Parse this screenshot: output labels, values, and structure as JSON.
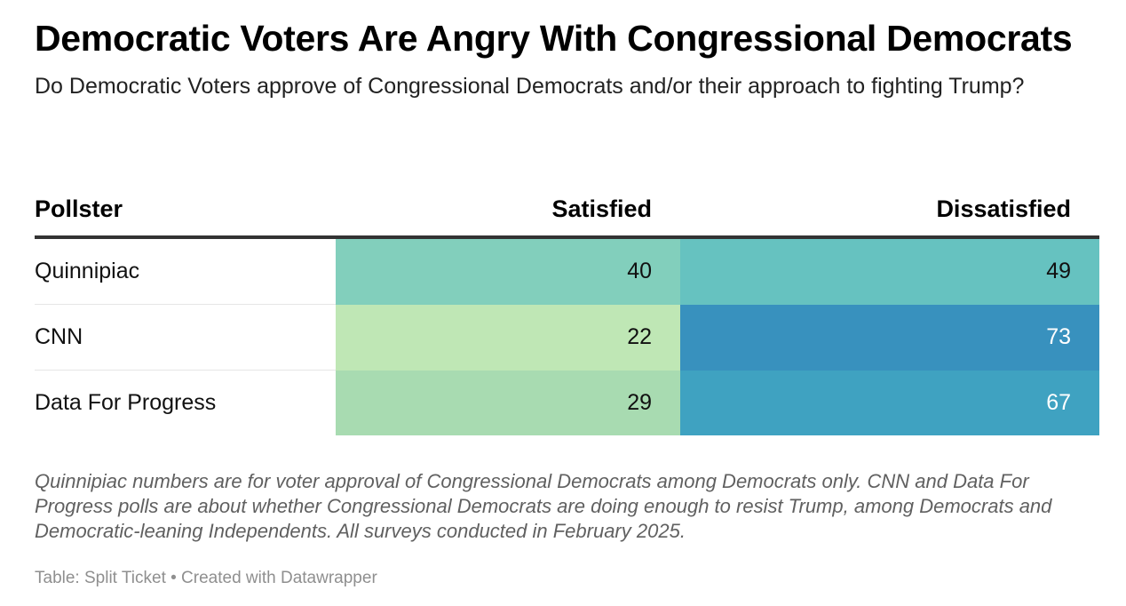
{
  "title": "Democratic Voters Are Angry With Congressional Democrats",
  "subtitle": "Do Democratic Voters approve of Congressional Democrats and/or their approach to fighting Trump?",
  "columns": [
    "Pollster",
    "Satisfied",
    "Dissatisfied"
  ],
  "rows": [
    {
      "pollster": "Quinnipiac",
      "satisfied": "40",
      "dissatisfied": "49",
      "satisfied_color": "#82CFBC",
      "dissatisfied_color": "#66C2C0",
      "satisfied_text_color": "#111111",
      "dissatisfied_text_color": "#111111"
    },
    {
      "pollster": "CNN",
      "satisfied": "22",
      "dissatisfied": "73",
      "satisfied_color": "#BFE7B5",
      "dissatisfied_color": "#3891BE",
      "satisfied_text_color": "#111111",
      "dissatisfied_text_color": "#ffffff"
    },
    {
      "pollster": "Data For Progress",
      "satisfied": "29",
      "dissatisfied": "67",
      "satisfied_color": "#A8DBB1",
      "dissatisfied_color": "#3FA2C1",
      "satisfied_text_color": "#111111",
      "dissatisfied_text_color": "#ffffff"
    }
  ],
  "notes": "Quinnipiac numbers are for voter approval of Congressional Democrats among Democrats only. CNN and Data For Progress polls are about whether Congressional Democrats are doing enough to resist Trump, among Democrats and Democratic-leaning Independents. All surveys conducted in February 2025.",
  "source": "Table: Split Ticket • Created with Datawrapper",
  "chart_data": {
    "type": "table",
    "title": "Democratic Voters Are Angry With Congressional Democrats",
    "subtitle": "Do Democratic Voters approve of Congressional Democrats and/or their approach to fighting Trump?",
    "categories": [
      "Quinnipiac",
      "CNN",
      "Data For Progress"
    ],
    "series": [
      {
        "name": "Satisfied",
        "values": [
          40,
          22,
          29
        ]
      },
      {
        "name": "Dissatisfied",
        "values": [
          49,
          73,
          67
        ]
      }
    ]
  }
}
